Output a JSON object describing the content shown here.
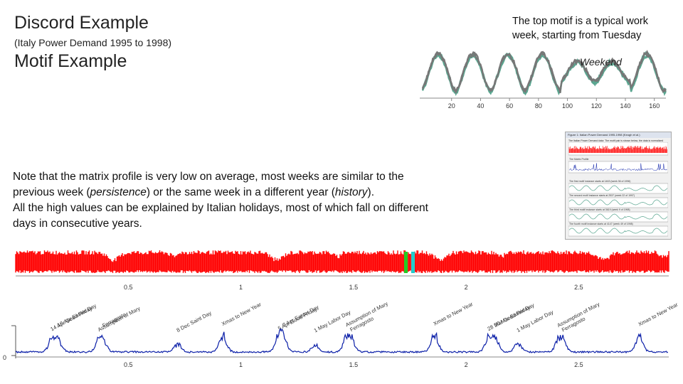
{
  "slide": {
    "discord_title": "Discord Example",
    "discord_subtitle": "(Italy Power Demand 1995 to 1998)",
    "motif_title": "Motif Example",
    "top_motif_note": "The top motif is a typical work week, starting from Tuesday",
    "note_line1": "Note that the matrix profile is very low on average, most weeks are similar to the",
    "note_line2_pre": "previous week (",
    "note_line2_em1": "persistence",
    "note_line2_mid": ") or the same week in a different year (",
    "note_line2_em2": "history",
    "note_line2_post": ").",
    "note_line3": "All the high values can be explained by Italian holidays, most of which fall on different",
    "note_line4": "days in consecutive years."
  },
  "thumbnail": {
    "window_title": "Figure 1: Italian Power Demand 1995-1998 (Keogh et al.)",
    "caption_top": "The Italian Power Demand data: The motif pair is shown below, the data is normalized",
    "caption_mp": "The Matrix Profile",
    "captions": [
      "The first motif instance starts at 1463 (week 36 of 1996)",
      "The second motif instance starts at 2537 (week 22 of 1997)",
      "The third motif instance starts at 3619 (week 9 of 1998)",
      "The fourth motif instance starts at 4147 (week 49 of 1998)"
    ]
  },
  "chart_data": [
    {
      "name": "motif-chart",
      "type": "line",
      "title": "",
      "annotation": "Weekend",
      "xlim": [
        0,
        168
      ],
      "x_ticks": [
        "20",
        "40",
        "60",
        "80",
        "100",
        "120",
        "140",
        "160"
      ],
      "x_tick_values": [
        20,
        40,
        60,
        80,
        100,
        120,
        140,
        160
      ],
      "series": [
        {
          "name": "motif instances",
          "color": "#5aa690",
          "count": 4
        },
        {
          "name": "motif instances overlay",
          "color": "#777777",
          "count": 2
        }
      ],
      "daily_cycles": 7,
      "weekend_cycle_amplitude": "reduced"
    },
    {
      "name": "time-series",
      "type": "line",
      "series": [
        {
          "name": "Italy power demand",
          "color": "#ff0000"
        }
      ],
      "x_tick_labels": [
        "0.5",
        "1",
        "1.5",
        "2",
        "2.5"
      ],
      "x_tick_values": [
        5000,
        10000,
        15000,
        20000,
        25000
      ],
      "xlim": [
        0,
        29000
      ],
      "highlight_colors": [
        "#22cc22",
        "#22cccc"
      ]
    },
    {
      "name": "matrix-profile",
      "type": "line",
      "series": [
        {
          "name": "matrix profile",
          "color": "#0b1fa8"
        }
      ],
      "x_tick_labels": [
        "0.5",
        "1",
        "1.5",
        "2",
        "2.5"
      ],
      "x_tick_values": [
        5000,
        10000,
        15000,
        20000,
        25000
      ],
      "xlim": [
        0,
        29000
      ],
      "y_label": "0",
      "holiday_annotations": [
        {
          "label": "14 Apr Good Friday",
          "x": 1600,
          "peak": 0.55
        },
        {
          "label": "16 Apr Easter Day",
          "x": 1900,
          "peak": 0.5
        },
        {
          "label": "Assumption of Mary",
          "x": 3700,
          "peak": 0.45
        },
        {
          "label": "Ferragosto",
          "x": 3900,
          "peak": 0.4
        },
        {
          "label": "8 Dec Saint Day",
          "x": 7200,
          "peak": 0.35
        },
        {
          "label": "Xmas to New Year",
          "x": 9200,
          "peak": 0.7
        },
        {
          "label": "5 Apr Good Friday",
          "x": 11700,
          "peak": 0.65
        },
        {
          "label": "7 Apr Easter Day",
          "x": 11900,
          "peak": 0.5
        },
        {
          "label": "1 May Labor Day",
          "x": 13300,
          "peak": 0.3
        },
        {
          "label": "Assumption of Mary",
          "x": 14700,
          "peak": 0.55
        },
        {
          "label": "Ferragosto",
          "x": 14900,
          "peak": 0.45
        },
        {
          "label": "Xmas to New Year",
          "x": 18600,
          "peak": 0.75
        },
        {
          "label": "28 Mar Good Friday",
          "x": 21000,
          "peak": 0.6
        },
        {
          "label": "30 Mar Easter Day",
          "x": 21300,
          "peak": 0.5
        },
        {
          "label": "1 May Labor Day",
          "x": 22300,
          "peak": 0.35
        },
        {
          "label": "Assumption of Mary",
          "x": 24100,
          "peak": 0.45
        },
        {
          "label": "Ferragosto",
          "x": 24300,
          "peak": 0.4
        },
        {
          "label": "Xmas to New Year",
          "x": 27700,
          "peak": 0.65
        }
      ]
    }
  ]
}
